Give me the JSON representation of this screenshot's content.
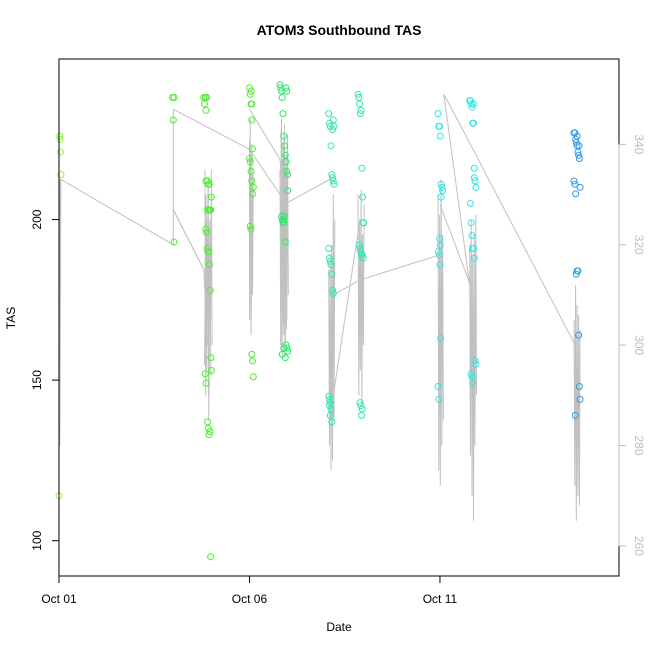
{
  "chart_data": {
    "type": "scatter",
    "title": "ATOM3 Southbound TAS",
    "xlabel": "Date",
    "ylabel": "TAS",
    "y2label": "",
    "xlim": [
      0,
      14.7
    ],
    "ylim": [
      89,
      250
    ],
    "y2lim": [
      254,
      357
    ],
    "x_ticks": [
      {
        "value": 0,
        "label": "Oct 01"
      },
      {
        "value": 5,
        "label": "Oct 06"
      },
      {
        "value": 10,
        "label": "Oct 11"
      }
    ],
    "y_ticks": [
      100,
      150,
      200
    ],
    "y2_ticks": [
      260,
      280,
      300,
      320,
      340
    ],
    "grid": false,
    "point_colors": [
      "#9ef24a",
      "#4cee2e",
      "#2ee86a",
      "#2ee8b4",
      "#2ee6e6",
      "#2e9ce6"
    ],
    "line_color": "#c0c0c0",
    "series": [
      {
        "color_index": 0,
        "x": [
          0.02,
          0.03,
          0.04,
          0.05,
          0.0,
          0.02
        ],
        "y": [
          226,
          225,
          221,
          214,
          114,
          226
        ]
      },
      {
        "color_index": 1,
        "x": [
          2.98,
          3.0,
          3.02,
          3.02,
          3.8,
          3.82,
          3.84,
          3.86,
          3.88,
          3.9,
          3.92,
          3.94,
          3.96,
          3.98,
          4.0,
          3.85,
          3.87,
          3.89,
          3.91,
          3.93,
          3.95,
          3.97,
          3.99,
          4.0,
          3.84,
          3.86,
          3.9,
          3.92,
          3.94,
          3.96,
          3.98,
          3.86,
          3.9,
          3.94,
          5.0,
          5.02,
          5.04,
          5.06,
          5.08,
          5.0,
          5.02,
          5.04,
          5.06,
          5.08,
          5.1,
          5.02,
          5.04,
          5.06,
          5.08,
          5.1,
          5.04,
          5.06
        ],
        "y": [
          238,
          231,
          193,
          238,
          238,
          236,
          238,
          234,
          238,
          212,
          211,
          211,
          203,
          203,
          207,
          197,
          196,
          191,
          190,
          190,
          186,
          178,
          157,
          153,
          152,
          149,
          137,
          135,
          133,
          134,
          95,
          212,
          203,
          203,
          241,
          239,
          236,
          231,
          222,
          219,
          218,
          215,
          212,
          208,
          210,
          198,
          197,
          158,
          156,
          151,
          240,
          236
        ]
      },
      {
        "color_index": 2,
        "x": [
          5.8,
          5.82,
          5.84,
          5.86,
          5.88,
          5.9,
          5.92,
          5.94,
          5.96,
          5.98,
          6.0,
          5.84,
          5.86,
          5.88,
          5.9,
          5.92,
          5.94,
          5.96,
          5.98,
          6.0,
          5.86,
          5.9,
          5.94,
          5.96,
          5.98,
          6.0,
          5.9
        ],
        "y": [
          242,
          241,
          240,
          238,
          233,
          226,
          223,
          220,
          218,
          215,
          209,
          201,
          200,
          199,
          199,
          201,
          193,
          161,
          160,
          159,
          158,
          160,
          157,
          241,
          240,
          214,
          200
        ]
      },
      {
        "color_index": 3,
        "x": [
          7.08,
          7.1,
          7.12,
          7.14,
          7.16,
          7.18,
          7.2,
          7.22,
          7.08,
          7.1,
          7.12,
          7.14,
          7.16,
          7.18,
          7.2,
          7.08,
          7.1,
          7.12,
          7.14,
          7.16,
          7.18,
          7.2,
          7.22,
          7.1,
          7.12,
          7.85,
          7.87,
          7.89,
          7.91,
          7.93,
          7.95,
          7.97,
          7.99,
          8.0,
          7.88,
          7.9,
          7.92,
          7.94,
          7.96,
          7.98,
          7.9,
          7.92,
          7.94,
          7.96
        ],
        "y": [
          233,
          230,
          229,
          223,
          214,
          213,
          212,
          211,
          191,
          188,
          187,
          186,
          183,
          178,
          177,
          145,
          144,
          143,
          141,
          137,
          228,
          231,
          229,
          142,
          139,
          239,
          238,
          236,
          233,
          234,
          216,
          207,
          199,
          199,
          192,
          191,
          190,
          189,
          189,
          188,
          143,
          142,
          139,
          141
        ]
      },
      {
        "color_index": 4,
        "x": [
          9.95,
          9.97,
          9.99,
          10.01,
          10.03,
          10.05,
          10.07,
          9.96,
          9.98,
          10.0,
          10.02,
          9.95,
          9.97,
          9.99,
          10.01,
          10.03,
          10.78,
          10.8,
          10.82,
          10.84,
          10.86,
          10.88,
          10.9,
          10.92,
          10.94,
          10.8,
          10.82,
          10.84,
          10.86,
          10.88,
          10.9,
          10.92,
          10.94,
          10.82,
          10.84,
          10.86,
          10.88,
          10.9
        ],
        "y": [
          233,
          229,
          229,
          226,
          211,
          210,
          209,
          190,
          189,
          186,
          163,
          148,
          144,
          194,
          192,
          207,
          237,
          237,
          236,
          235,
          230,
          230,
          216,
          212,
          210,
          205,
          199,
          195,
          191,
          191,
          188,
          156,
          155,
          152,
          151,
          149,
          236,
          213
        ]
      },
      {
        "color_index": 5,
        "x": [
          13.52,
          13.54,
          13.56,
          13.58,
          13.6,
          13.62,
          13.64,
          13.66,
          13.68,
          13.52,
          13.54,
          13.56,
          13.58,
          13.6,
          13.62,
          13.64,
          13.66,
          13.68,
          13.55,
          13.6,
          13.65
        ],
        "y": [
          227,
          227,
          225,
          224,
          223,
          221,
          220,
          219,
          210,
          212,
          211,
          208,
          183,
          184,
          184,
          164,
          148,
          144,
          139,
          226,
          223
        ]
      }
    ],
    "y2_lines": [
      {
        "x": [
          0.02,
          0.02,
          0.05,
          3.0,
          3.0,
          3.8,
          3.9
        ],
        "y": [
          333,
          280,
          333,
          320,
          327,
          315,
          300
        ]
      },
      {
        "x": [
          3.0,
          3.0,
          3.8
        ],
        "y": [
          347,
          327,
          315
        ]
      },
      {
        "x": [
          3.0,
          5.0,
          5.8
        ],
        "y": [
          347,
          339,
          330
        ]
      },
      {
        "x": [
          3.82,
          3.84,
          3.86,
          3.88,
          3.9,
          3.92,
          3.94,
          3.96,
          3.98,
          4.0,
          4.02
        ],
        "y": [
          296,
          312,
          330,
          295,
          320,
          333,
          290,
          325,
          305,
          335,
          300
        ]
      },
      {
        "x": [
          3.83,
          3.85,
          3.87,
          3.89,
          3.91,
          3.93,
          3.95,
          3.97,
          3.99
        ],
        "y": [
          335,
          290,
          325,
          300,
          332,
          285,
          318,
          310,
          294
        ]
      },
      {
        "x": [
          5.0,
          5.0,
          5.02,
          5.04,
          5.06,
          5.08,
          5.1,
          5.04
        ],
        "y": [
          341,
          305,
          345,
          302,
          340,
          310,
          334,
          302
        ]
      },
      {
        "x": [
          5.0,
          5.8,
          5.9,
          7.1
        ],
        "y": [
          347,
          337,
          328,
          333
        ]
      },
      {
        "x": [
          5.8,
          5.82,
          5.84,
          5.86,
          5.88,
          5.9,
          5.92,
          5.94,
          5.96,
          5.98,
          6.0,
          6.02
        ],
        "y": [
          335,
          300,
          345,
          298,
          340,
          302,
          344,
          300,
          338,
          305,
          342,
          310
        ]
      },
      {
        "x": [
          5.83,
          5.85,
          5.87,
          5.89,
          5.91,
          5.93,
          5.95,
          5.97,
          5.99
        ],
        "y": [
          343,
          299,
          337,
          304,
          342,
          300,
          335,
          303,
          340
        ]
      },
      {
        "x": [
          7.08,
          7.1,
          7.12,
          7.14,
          7.16,
          7.18,
          7.2,
          7.22,
          7.24
        ],
        "y": [
          315,
          280,
          318,
          275,
          320,
          277,
          330,
          285,
          325
        ]
      },
      {
        "x": [
          7.1,
          7.9
        ],
        "y": [
          285,
          325
        ]
      },
      {
        "x": [
          7.85,
          7.87,
          7.89,
          7.91,
          7.93,
          7.95,
          7.97,
          7.99,
          8.01
        ],
        "y": [
          330,
          290,
          325,
          295,
          331,
          288,
          322,
          300,
          328
        ]
      },
      {
        "x": [
          7.2,
          7.9,
          10.0
        ],
        "y": [
          310,
          313,
          318
        ]
      },
      {
        "x": [
          9.95,
          9.97,
          9.99,
          10.01,
          10.03,
          10.05,
          10.07,
          10.09
        ],
        "y": [
          330,
          275,
          326,
          272,
          333,
          280,
          322,
          285
        ]
      },
      {
        "x": [
          10.1,
          10.78
        ],
        "y": [
          350,
          312
        ]
      },
      {
        "x": [
          10.78,
          10.8,
          10.82,
          10.84,
          10.86,
          10.88,
          10.9,
          10.92,
          10.94,
          10.96
        ],
        "y": [
          320,
          278,
          325,
          270,
          318,
          265,
          322,
          280,
          326,
          290
        ]
      },
      {
        "x": [
          10.1,
          10.8,
          13.55
        ],
        "y": [
          350,
          340,
          300
        ]
      },
      {
        "x": [
          10.0,
          10.8
        ],
        "y": [
          328,
          312
        ]
      },
      {
        "x": [
          13.52,
          13.54,
          13.56,
          13.58,
          13.6,
          13.62,
          13.64,
          13.66,
          13.68
        ],
        "y": [
          305,
          272,
          312,
          265,
          308,
          270,
          306,
          268,
          303
        ]
      }
    ]
  }
}
